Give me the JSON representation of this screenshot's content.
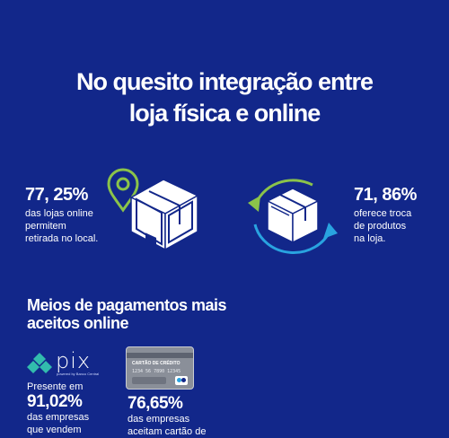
{
  "title": {
    "line1": "No quesito integração entre",
    "line2": "loja física e online"
  },
  "stat_left": {
    "value": "77, 25%",
    "lines": [
      "das lojas online",
      "permitem",
      "retirada no local."
    ]
  },
  "stat_right": {
    "value": "71, 86%",
    "lines": [
      "oferece troca",
      "de produtos",
      "na loja."
    ]
  },
  "payments": {
    "heading_line1": "Meios de pagamentos mais",
    "heading_line2": "aceitos online",
    "pix": {
      "logo_text": "pix",
      "logo_sub": "powered by Banco Central",
      "intro": "Presente em",
      "value": "91,02%",
      "lines": [
        "das empresas",
        "que vendem"
      ]
    },
    "card": {
      "card_label": "CARTÃO DE CRÉDITO",
      "card_number": "1234 56 7890 12345",
      "value": "76,65%",
      "lines": [
        "das empresas",
        "aceitam cartão de"
      ]
    }
  },
  "colors": {
    "background": "#12278a",
    "accent_green": "#8bc34a",
    "accent_blue": "#29a3e0",
    "pix_teal": "#32bcad"
  },
  "icons": [
    "location-pin-icon",
    "box-icon",
    "cycle-arrows-icon",
    "pix-logo-icon",
    "credit-card-icon"
  ]
}
